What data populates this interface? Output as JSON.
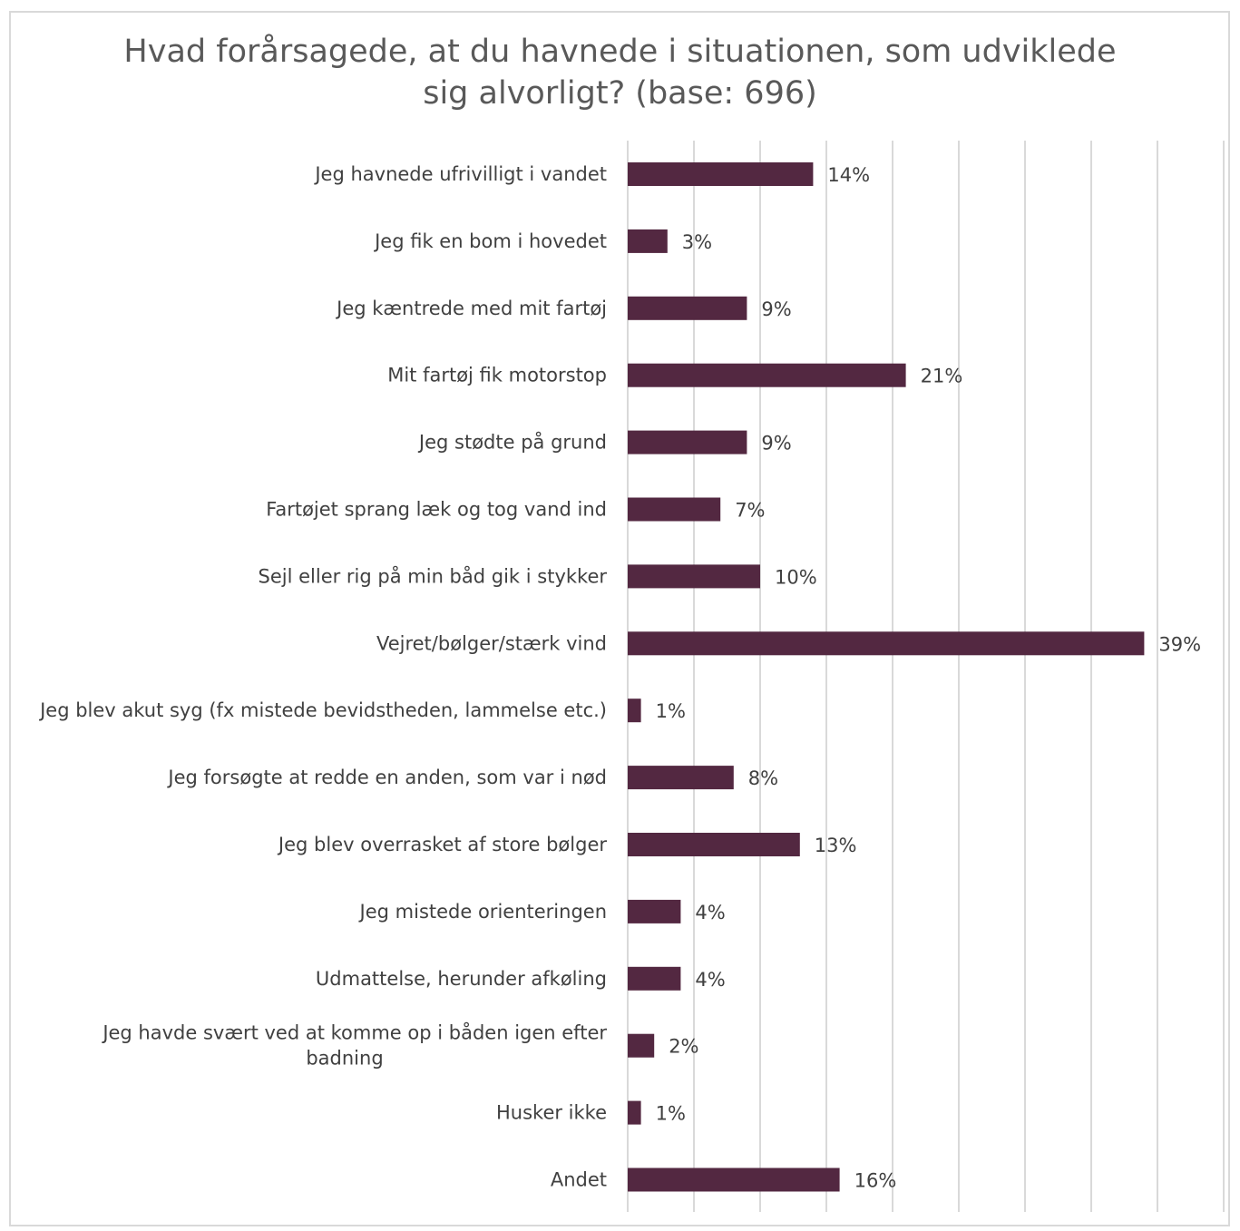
{
  "chart_data": {
    "type": "bar",
    "orientation": "horizontal",
    "title": "Hvad forårsagede, at du havnede i situationen, som udviklede sig alvorligt? (base: 696)",
    "title_lines": [
      "Hvad forårsagede, at du havnede i situationen, som udviklede",
      "sig alvorligt? (base: 696)"
    ],
    "categories": [
      [
        "Jeg havnede ufrivilligt i vandet"
      ],
      [
        "Jeg fik en bom i hovedet"
      ],
      [
        "Jeg kæntrede med mit fartøj"
      ],
      [
        "Mit fartøj fik motorstop"
      ],
      [
        "Jeg stødte på grund"
      ],
      [
        "Fartøjet sprang læk og tog vand ind"
      ],
      [
        "Sejl eller rig på min båd gik i stykker"
      ],
      [
        "Vejret/bølger/stærk vind"
      ],
      [
        "Jeg blev akut syg (fx mistede bevidstheden, lammelse etc.)"
      ],
      [
        "Jeg forsøgte at redde en anden, som var i nød"
      ],
      [
        "Jeg blev overrasket af store bølger"
      ],
      [
        "Jeg mistede orienteringen"
      ],
      [
        "Udmattelse, herunder afkøling"
      ],
      [
        "Jeg havde svært ved at komme op i båden igen efter",
        "badning"
      ],
      [
        "Husker ikke"
      ],
      [
        "Andet"
      ]
    ],
    "values": [
      14,
      3,
      9,
      21,
      9,
      7,
      10,
      39,
      1,
      8,
      13,
      4,
      4,
      2,
      1,
      16
    ],
    "value_labels": [
      "14%",
      "3%",
      "9%",
      "21%",
      "9%",
      "7%",
      "10%",
      "39%",
      "1%",
      "8%",
      "13%",
      "4%",
      "4%",
      "2%",
      "1%",
      "16%"
    ],
    "xlim": [
      0,
      45
    ],
    "grid_step": 5,
    "grid": true,
    "bar_color": "#532841",
    "gridline_color": "#d9d9d9",
    "text_color": "#404040"
  }
}
